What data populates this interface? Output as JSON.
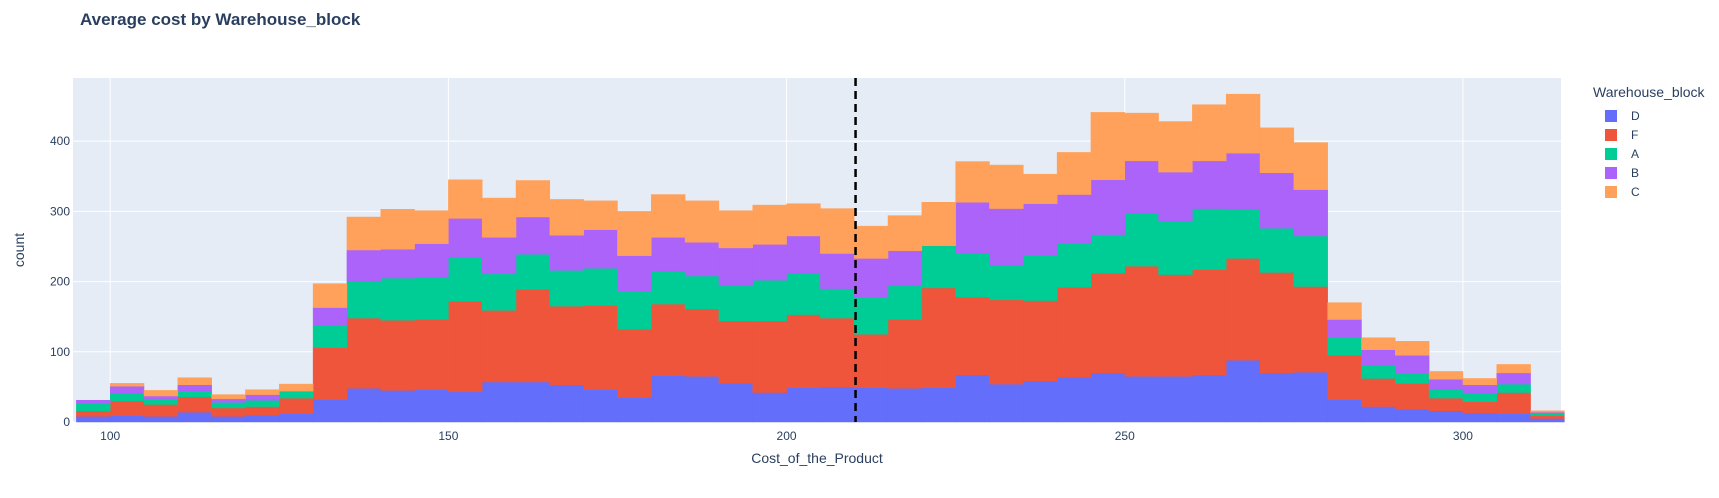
{
  "chart_data": {
    "type": "bar",
    "title": "Average cost by Warehouse_block",
    "xlabel": "Cost_of_the_Product",
    "ylabel": "count",
    "barmode": "stack",
    "bin_width": 5,
    "xlim": [
      94.5,
      314.5
    ],
    "ylim": [
      0,
      490
    ],
    "x_ticks": [
      100,
      150,
      200,
      250,
      300
    ],
    "y_ticks": [
      0,
      100,
      200,
      300,
      400
    ],
    "grid": true,
    "legend_title": "Warehouse_block",
    "legend_position": "top-right",
    "vline": {
      "x": 210.2,
      "style": "dashed",
      "color": "#000000"
    },
    "bin_starts": [
      95,
      100,
      105,
      110,
      115,
      120,
      125,
      130,
      135,
      140,
      145,
      150,
      155,
      160,
      165,
      170,
      175,
      180,
      185,
      190,
      195,
      200,
      205,
      210,
      215,
      220,
      225,
      230,
      235,
      240,
      245,
      250,
      255,
      260,
      265,
      270,
      275,
      280,
      285,
      290,
      295,
      300,
      305,
      310
    ],
    "series": [
      {
        "name": "D",
        "color": "#636efa",
        "values": [
          8,
          9,
          8,
          14,
          8,
          10,
          12,
          32,
          48,
          45,
          46,
          43,
          57,
          57,
          53,
          46,
          35,
          66,
          65,
          55,
          42,
          49,
          50,
          49,
          48,
          49,
          67,
          54,
          58,
          64,
          70,
          65,
          65,
          67,
          88,
          70,
          71,
          32,
          22,
          18,
          16,
          13,
          12,
          5
        ]
      },
      {
        "name": "F",
        "color": "#ef553b",
        "values": [
          8,
          21,
          17,
          22,
          12,
          12,
          22,
          74,
          100,
          100,
          100,
          129,
          102,
          132,
          112,
          120,
          97,
          102,
          96,
          89,
          102,
          104,
          98,
          76,
          98,
          142,
          111,
          120,
          115,
          128,
          142,
          157,
          145,
          150,
          145,
          143,
          122,
          63,
          40,
          37,
          18,
          16,
          30,
          4
        ]
      },
      {
        "name": "A",
        "color": "#00cc96",
        "values": [
          10,
          11,
          7,
          8,
          8,
          9,
          10,
          32,
          53,
          60,
          60,
          63,
          52,
          50,
          51,
          53,
          54,
          47,
          47,
          50,
          58,
          59,
          42,
          52,
          48,
          60,
          62,
          50,
          64,
          63,
          55,
          76,
          76,
          87,
          70,
          63,
          72,
          26,
          19,
          14,
          12,
          12,
          12,
          3
        ]
      },
      {
        "name": "B",
        "color": "#ab63fa",
        "values": [
          5,
          10,
          5,
          9,
          5,
          8,
          0,
          25,
          44,
          41,
          48,
          55,
          52,
          53,
          50,
          55,
          51,
          48,
          48,
          54,
          51,
          53,
          50,
          56,
          50,
          0,
          73,
          80,
          74,
          69,
          78,
          74,
          70,
          68,
          80,
          79,
          66,
          25,
          22,
          26,
          15,
          12,
          16,
          2
        ]
      },
      {
        "name": "C",
        "color": "#ffa15a",
        "values": [
          0,
          4,
          8,
          10,
          6,
          7,
          10,
          34,
          47,
          57,
          47,
          55,
          56,
          52,
          51,
          41,
          63,
          61,
          59,
          53,
          56,
          46,
          64,
          46,
          50,
          62,
          58,
          62,
          42,
          60,
          96,
          68,
          72,
          80,
          84,
          64,
          67,
          24,
          17,
          20,
          11,
          9,
          12,
          2
        ]
      }
    ]
  }
}
